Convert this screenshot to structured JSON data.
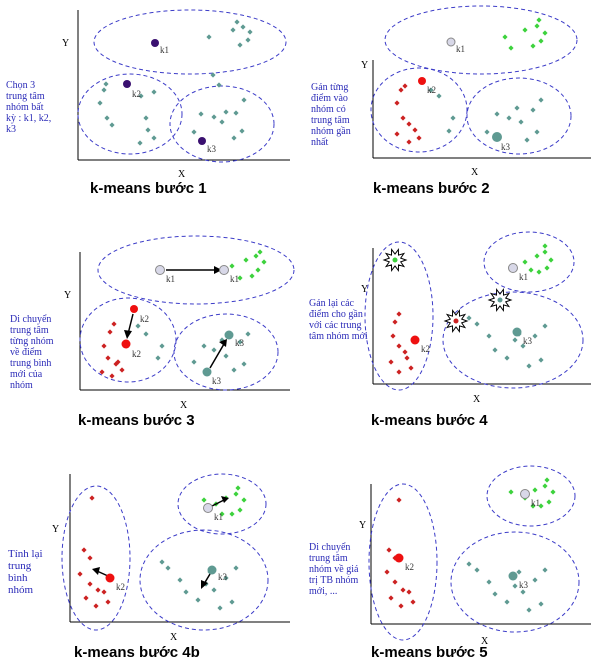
{
  "colors": {
    "cluster_outline": "#3c3cc8",
    "teal_point": "#5f9a92",
    "green_point": "#3dd23d",
    "red_point": "#cc2222",
    "centroid_dark": "#3a1070",
    "centroid_light": "#d8d8e8",
    "note_text": "#2b2bb8"
  },
  "axes": {
    "x_label": "X",
    "y_label": "Y"
  },
  "centroid_labels": {
    "k1": "k1",
    "k2": "k2",
    "k3": "k3"
  },
  "panels": [
    {
      "id": "step1",
      "caption": "k-means bước 1",
      "note": [
        "Chọn 3",
        "trung tâm",
        "nhóm bất",
        "kỳ : k1, k2,",
        "k3"
      ]
    },
    {
      "id": "step2",
      "caption": "k-means bước 2",
      "note": [
        "Gán từng",
        "điểm vào",
        "nhóm có",
        "trung tâm",
        "nhóm gần",
        "nhất"
      ]
    },
    {
      "id": "step3",
      "caption": "k-means bước 3",
      "note": [
        "Di chuyển",
        "trung tâm",
        "từng nhóm",
        "về điểm",
        "trung bình",
        "mới của",
        "nhóm"
      ]
    },
    {
      "id": "step4",
      "caption": "k-means bước 4",
      "note": [
        "Gán lại các",
        "điểm cho gần",
        "với các trung",
        "tâm nhóm mới"
      ]
    },
    {
      "id": "step4b",
      "caption": "k-means bước 4b",
      "note": [
        "Tính lại",
        "trung",
        "bình",
        "nhóm"
      ]
    },
    {
      "id": "step5",
      "caption": "k-means bước 5",
      "note": [
        "Di chuyển",
        "trung tâm",
        "nhóm về giá",
        "trị TB nhóm",
        "mới, ..."
      ]
    }
  ]
}
